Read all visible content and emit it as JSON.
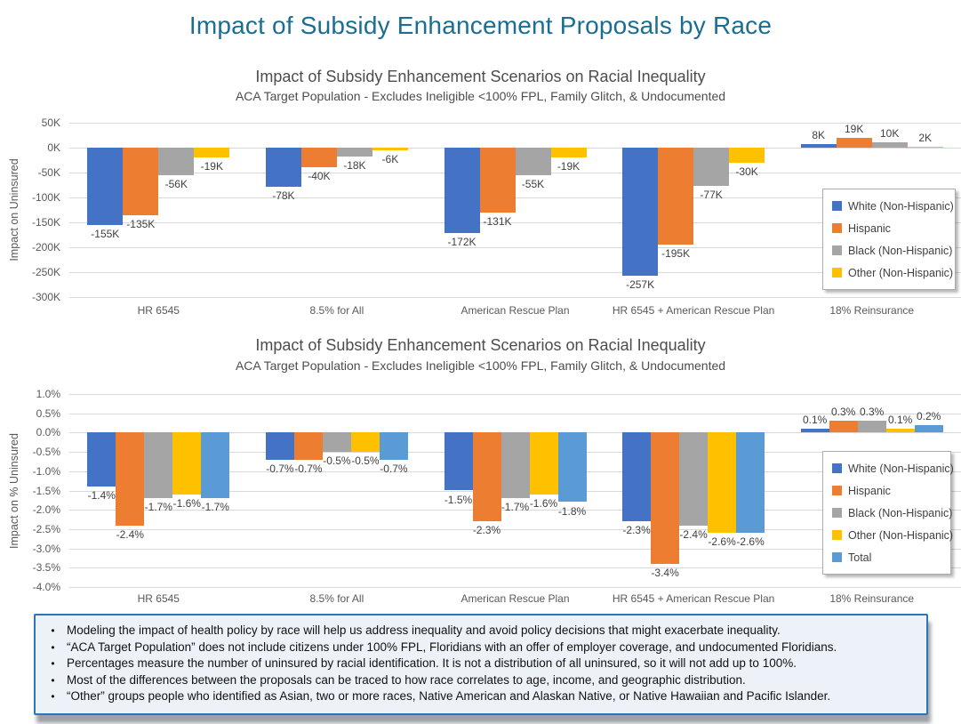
{
  "slide": {
    "title": "Impact of Subsidy Enhancement Proposals by Race",
    "title_color": "#1b6e91"
  },
  "chart_data": [
    {
      "type": "bar",
      "title": "Impact of Subsidy Enhancement Scenarios on Racial Inequality",
      "subtitle": "ACA Target Population - Excludes Ineligible <100% FPL, Family Glitch, & Undocumented",
      "ylabel": "Impact on Uninsured",
      "xlabel": "",
      "ylim": [
        -300000,
        50000
      ],
      "ytick_step": 50000,
      "yticks": [
        "50K",
        "0K",
        "-50K",
        "-100K",
        "-150K",
        "-200K",
        "-250K",
        "-300K"
      ],
      "grid": true,
      "legend_position": "inside-right",
      "categories": [
        "HR 6545",
        "8.5% for All",
        "American Rescue Plan",
        "HR 6545 + American Rescue Plan",
        "18% Reinsurance"
      ],
      "series": [
        {
          "name": "White (Non-Hispanic)",
          "color": "#4472c4",
          "values": [
            -155000,
            -78000,
            -172000,
            -257000,
            8000
          ],
          "labels": [
            "-155K",
            "-78K",
            "-172K",
            "-257K",
            "8K"
          ]
        },
        {
          "name": "Hispanic",
          "color": "#ed7d31",
          "values": [
            -135000,
            -40000,
            -131000,
            -195000,
            19000
          ],
          "labels": [
            "-135K",
            "-40K",
            "-131K",
            "-195K",
            "19K"
          ]
        },
        {
          "name": "Black (Non-Hispanic)",
          "color": "#a5a5a5",
          "values": [
            -56000,
            -18000,
            -55000,
            -77000,
            10000
          ],
          "labels": [
            "-56K",
            "-18K",
            "-55K",
            "-77K",
            "10K"
          ]
        },
        {
          "name": "Other (Non-Hispanic)",
          "color": "#ffc000",
          "values": [
            -19000,
            -6000,
            -19000,
            -30000,
            2000
          ],
          "labels": [
            "-19K",
            "-6K",
            "-19K",
            "-30K",
            "2K"
          ]
        }
      ]
    },
    {
      "type": "bar",
      "title": "Impact of Subsidy Enhancement Scenarios on Racial Inequality",
      "subtitle": "ACA Target Population - Excludes Ineligible <100% FPL, Family Glitch, & Undocumented",
      "ylabel": "Impact on % Uninsured",
      "xlabel": "",
      "ylim": [
        -4.0,
        1.0
      ],
      "ytick_step": 0.5,
      "yticks": [
        "1.0%",
        "0.5%",
        "0.0%",
        "-0.5%",
        "-1.0%",
        "-1.5%",
        "-2.0%",
        "-2.5%",
        "-3.0%",
        "-3.5%",
        "-4.0%"
      ],
      "grid": true,
      "legend_position": "inside-right",
      "categories": [
        "HR 6545",
        "8.5% for All",
        "American Rescue Plan",
        "HR 6545 + American Rescue Plan",
        "18% Reinsurance"
      ],
      "series": [
        {
          "name": "White (Non-Hispanic)",
          "color": "#4472c4",
          "values": [
            -1.4,
            -0.7,
            -1.5,
            -2.3,
            0.1
          ],
          "labels": [
            "-1.4%",
            "-0.7%",
            "-1.5%",
            "-2.3%",
            "0.1%"
          ]
        },
        {
          "name": "Hispanic",
          "color": "#ed7d31",
          "values": [
            -2.4,
            -0.7,
            -2.3,
            -3.4,
            0.3
          ],
          "labels": [
            "-2.4%",
            "-0.7%",
            "-2.3%",
            "-3.4%",
            "0.3%"
          ]
        },
        {
          "name": "Black (Non-Hispanic)",
          "color": "#a5a5a5",
          "values": [
            -1.7,
            -0.5,
            -1.7,
            -2.4,
            0.3
          ],
          "labels": [
            "-1.7%",
            "-0.5%",
            "-1.7%",
            "-2.4%",
            "0.3%"
          ]
        },
        {
          "name": "Other (Non-Hispanic)",
          "color": "#ffc000",
          "values": [
            -1.6,
            -0.5,
            -1.6,
            -2.6,
            0.1
          ],
          "labels": [
            "-1.6%",
            "-0.5%",
            "-1.6%",
            "-2.6%",
            "0.1%"
          ]
        },
        {
          "name": "Total",
          "color": "#5b9bd5",
          "values": [
            -1.7,
            -0.7,
            -1.8,
            -2.6,
            0.2
          ],
          "labels": [
            "-1.7%",
            "-0.7%",
            "-1.8%",
            "-2.6%",
            "0.2%"
          ]
        }
      ]
    }
  ],
  "notes": {
    "bullet_char": "•",
    "border_color": "#2e75b6",
    "background": "#edf2f9",
    "bullets": [
      "Modeling the impact of health policy by race will help us address inequality and avoid policy decisions that might exacerbate inequality.",
      "“ACA Target Population” does  not include citizens under 100% FPL, Floridians with an offer of employer coverage, and undocumented Floridians.",
      "Percentages measure the number of uninsured by racial identification. It is not a distribution of all uninsured, so it will not add up to 100%.",
      "Most of the differences between the proposals can be traced to how race correlates to age, income, and geographic distribution.",
      "“Other” groups people who identified as Asian, two or more races, Native American and Alaskan Native, or Native Hawaiian and Pacific Islander."
    ]
  }
}
